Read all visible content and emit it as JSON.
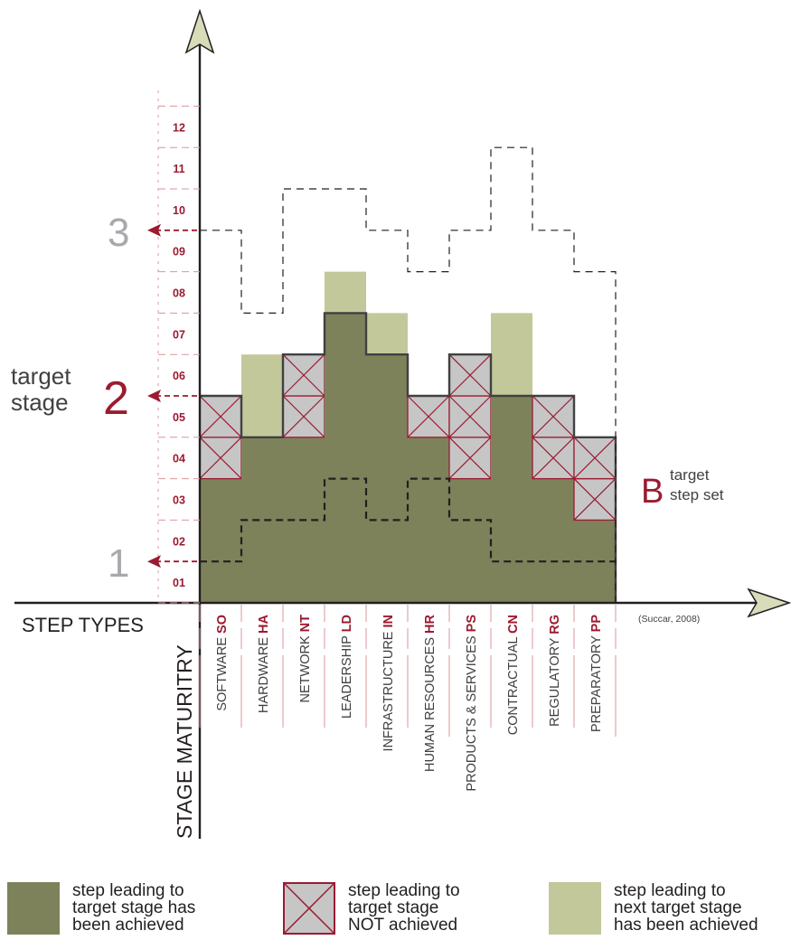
{
  "chart_data": {
    "type": "bar",
    "y_ticks": [
      "01",
      "02",
      "03",
      "04",
      "05",
      "06",
      "07",
      "08",
      "09",
      "10",
      "11",
      "12"
    ],
    "ylim": [
      0,
      12
    ],
    "x_axis_title": "STEP TYPES",
    "y_axis_title": "STAGE MATURITRY",
    "citation": "(Succar, 2008)",
    "stage_markers": [
      {
        "label": "1",
        "level": 1
      },
      {
        "label": "2",
        "level": 5
      },
      {
        "label": "3",
        "level": 9
      }
    ],
    "target_stage_label_line1": "target",
    "target_stage_label_line2": "stage",
    "target_step_set": {
      "letter": "B",
      "line1": "target",
      "line2": "step set"
    },
    "categories": [
      {
        "code": "SO",
        "name": "SOFTWARE",
        "achieved": 3,
        "target": 5,
        "next_target": 5,
        "stage1_line": 1,
        "stage3_line": 9
      },
      {
        "code": "HA",
        "name": "HARDWARE",
        "achieved": 4,
        "target": 4,
        "next_target": 6,
        "stage1_line": 2,
        "stage3_line": 7
      },
      {
        "code": "NT",
        "name": "NETWORK",
        "achieved": 4,
        "target": 6,
        "next_target": 6,
        "stage1_line": 2,
        "stage3_line": 10
      },
      {
        "code": "LD",
        "name": "LEADERSHIP",
        "achieved": 7,
        "target": 7,
        "next_target": 8,
        "stage1_line": 3,
        "stage3_line": 10
      },
      {
        "code": "IN",
        "name": "INFRASTRUCTURE",
        "achieved": 6,
        "target": 6,
        "next_target": 7,
        "stage1_line": 2,
        "stage3_line": 9
      },
      {
        "code": "HR",
        "name": "HUMAN RESOURCES",
        "achieved": 4,
        "target": 5,
        "next_target": 5,
        "stage1_line": 3,
        "stage3_line": 8
      },
      {
        "code": "PS",
        "name": "PRODUCTS & SERVICES",
        "achieved": 3,
        "target": 6,
        "next_target": 6,
        "stage1_line": 2,
        "stage3_line": 9
      },
      {
        "code": "CN",
        "name": "CONTRACTUAL",
        "achieved": 5,
        "target": 5,
        "next_target": 7,
        "stage1_line": 1,
        "stage3_line": 11
      },
      {
        "code": "RG",
        "name": "REGULATORY",
        "achieved": 3,
        "target": 5,
        "next_target": 5,
        "stage1_line": 1,
        "stage3_line": 9
      },
      {
        "code": "PP",
        "name": "PREPARATORY",
        "achieved": 2,
        "target": 4,
        "next_target": 4,
        "stage1_line": 1,
        "stage3_line": 8
      }
    ],
    "legend": [
      {
        "kind": "achieved",
        "text": "step leading to\ntarget stage has\nbeen achieved"
      },
      {
        "kind": "not_achieved",
        "text": "step leading to\ntarget stage\nNOT achieved"
      },
      {
        "kind": "next_achieved",
        "text": "step leading to\nnext target stage\nhas been achieved"
      }
    ]
  },
  "colors": {
    "achieved": "#7e825a",
    "next_achieved": "#c3c89b",
    "not_achieved": "#c6c6c7",
    "accent_red": "#9b1b30",
    "tick_red": "#d9959a",
    "stage_grey": "#a7a9ac",
    "axis": "#231f20",
    "arrow_fill": "#d8dcb8"
  }
}
